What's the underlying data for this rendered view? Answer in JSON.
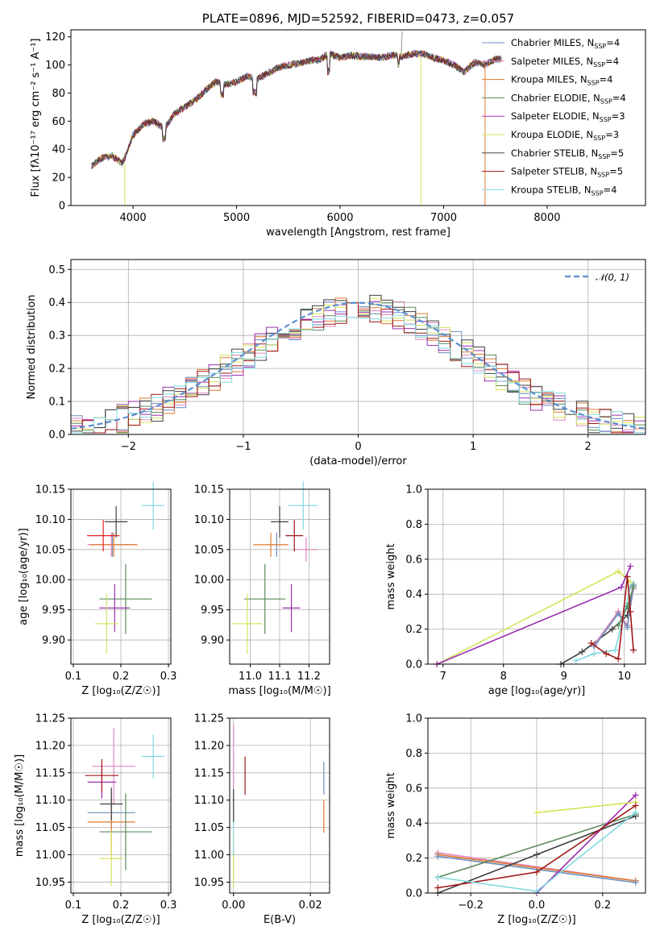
{
  "title": "PLATE=0896, MJD=52592, FIBERID=0473, z=0.057",
  "colors": {
    "Chabrier MILES": "#6c8ebf",
    "Salpeter MILES": "#e088c0",
    "Kroupa MILES": "#e07a30",
    "Chabrier ELODIE": "#5a8a5a",
    "Salpeter ELODIE": "#9b30b0",
    "Kroupa ELODIE": "#d7e35a",
    "Chabrier STELIB": "#404040",
    "Salpeter STELIB": "#a01818",
    "Kroupa STELIB": "#80d8e0",
    "red": "#e02020",
    "gauss": "#5b8fd0"
  },
  "chart_data": [
    {
      "id": "spectrum",
      "type": "line",
      "title": "PLATE=0896, MJD=52592, FIBERID=0473, z=0.057",
      "xlabel": "wavelength [Angstrom, rest frame]",
      "ylabel": "Flux [fλ10⁻¹⁷ erg cm⁻² s⁻¹ A⁻¹]",
      "xlim": [
        3400,
        8950
      ],
      "ylim": [
        0,
        125
      ],
      "xticks": [
        4000,
        5000,
        6000,
        7000,
        8000
      ],
      "yticks": [
        0,
        20,
        40,
        60,
        80,
        100,
        120
      ],
      "legend": [
        "Chabrier MILES, N_SSP=4",
        "Salpeter MILES, N_SSP=4",
        "Kroupa MILES, N_SSP=4",
        "Chabrier ELODIE, N_SSP=4",
        "Salpeter ELODIE, N_SSP=3",
        "Kroupa ELODIE, N_SSP=3",
        "Chabrier STELIB, N_SSP=5",
        "Salpeter STELIB, N_SSP=5",
        "Kroupa STELIB, N_SSP=4"
      ],
      "legend_position": "right",
      "approx_points": [
        [
          3600,
          28
        ],
        [
          3700,
          34
        ],
        [
          3800,
          35
        ],
        [
          3900,
          30
        ],
        [
          4000,
          50
        ],
        [
          4100,
          58
        ],
        [
          4200,
          60
        ],
        [
          4300,
          55
        ],
        [
          4400,
          65
        ],
        [
          4500,
          70
        ],
        [
          4600,
          75
        ],
        [
          4700,
          82
        ],
        [
          4800,
          88
        ],
        [
          4900,
          86
        ],
        [
          5000,
          88
        ],
        [
          5100,
          92
        ],
        [
          5200,
          90
        ],
        [
          5300,
          94
        ],
        [
          5400,
          98
        ],
        [
          5500,
          100
        ],
        [
          5600,
          101
        ],
        [
          5700,
          103
        ],
        [
          5800,
          104
        ],
        [
          5900,
          108
        ],
        [
          6000,
          105
        ],
        [
          6100,
          107
        ],
        [
          6200,
          106
        ],
        [
          6300,
          106
        ],
        [
          6400,
          105
        ],
        [
          6500,
          107
        ],
        [
          6600,
          106
        ],
        [
          6700,
          108
        ],
        [
          6800,
          108
        ],
        [
          6900,
          105
        ],
        [
          7000,
          103
        ],
        [
          7100,
          100
        ],
        [
          7200,
          95
        ],
        [
          7300,
          102
        ],
        [
          7400,
          100
        ],
        [
          7500,
          104
        ]
      ]
    },
    {
      "id": "residuals",
      "type": "histogram",
      "xlabel": "(data-model)/error",
      "ylabel": "Normed distribution",
      "xlim": [
        -2.5,
        2.5
      ],
      "ylim": [
        0,
        0.53
      ],
      "xticks": [
        -2,
        -1,
        0,
        1,
        2
      ],
      "yticks": [
        0.0,
        0.1,
        0.2,
        0.3,
        0.4,
        0.5
      ],
      "legend": [
        "𝒩(0, 1)"
      ],
      "legend_position": "top-right"
    },
    {
      "id": "age_vs_Z",
      "type": "scatter",
      "xlabel": "Z [log₁₀(Z/Z☉)]",
      "ylabel": "age  [log₁₀(age/yr)]",
      "xlim": [
        0.095,
        0.305
      ],
      "ylim": [
        9.86,
        10.15
      ],
      "xticks": [
        0.1,
        0.2,
        0.3
      ],
      "yticks": [
        9.9,
        9.95,
        10.0,
        10.05,
        10.1,
        10.15
      ],
      "points": [
        {
          "series": "Chabrier MILES",
          "x": 0.182,
          "y": 10.058,
          "xerr": 0.05,
          "yerr": 0.02
        },
        {
          "series": "Salpeter MILES",
          "x": 0.18,
          "y": 10.058,
          "xerr": 0.05,
          "yerr": 0.02
        },
        {
          "series": "Kroupa MILES",
          "x": 0.185,
          "y": 10.058,
          "xerr": 0.05,
          "yerr": 0.02
        },
        {
          "series": "Chabrier ELODIE",
          "x": 0.21,
          "y": 9.968,
          "xerr": 0.055,
          "yerr": 0.058
        },
        {
          "series": "Salpeter ELODIE",
          "x": 0.187,
          "y": 9.953,
          "xerr": 0.032,
          "yerr": 0.04
        },
        {
          "series": "Kroupa ELODIE",
          "x": 0.17,
          "y": 9.927,
          "xerr": 0.024,
          "yerr": 0.05
        },
        {
          "series": "Chabrier STELIB",
          "x": 0.19,
          "y": 10.096,
          "xerr": 0.024,
          "yerr": 0.026
        },
        {
          "series": "Salpeter STELIB",
          "x": 0.163,
          "y": 10.073,
          "xerr": 0.034,
          "yerr": 0.026
        },
        {
          "series": "Kroupa STELIB",
          "x": 0.268,
          "y": 10.123,
          "xerr": 0.024,
          "yerr": 0.04
        }
      ]
    },
    {
      "id": "age_vs_mass",
      "type": "scatter",
      "xlabel": "mass [log₁₀(M/M☉)]",
      "ylabel": "",
      "xlim": [
        10.93,
        11.27
      ],
      "ylim": [
        9.86,
        10.15
      ],
      "xticks": [
        11.0,
        11.1,
        11.2
      ],
      "yticks": [
        9.9,
        9.95,
        10.0,
        10.05,
        10.1,
        10.15
      ],
      "points": [
        {
          "series": "Chabrier MILES",
          "x": 11.09,
          "y": 10.058,
          "xerr": 0.03,
          "yerr": 0.02
        },
        {
          "series": "Salpeter MILES",
          "x": 11.19,
          "y": 10.05,
          "xerr": 0.04,
          "yerr": 0.02
        },
        {
          "series": "Kroupa MILES",
          "x": 11.07,
          "y": 10.058,
          "xerr": 0.06,
          "yerr": 0.02
        },
        {
          "series": "Chabrier ELODIE",
          "x": 11.05,
          "y": 9.968,
          "xerr": 0.07,
          "yerr": 0.058
        },
        {
          "series": "Salpeter ELODIE",
          "x": 11.14,
          "y": 9.953,
          "xerr": 0.03,
          "yerr": 0.04
        },
        {
          "series": "Kroupa ELODIE",
          "x": 10.99,
          "y": 9.927,
          "xerr": 0.05,
          "yerr": 0.05
        },
        {
          "series": "Chabrier STELIB",
          "x": 11.1,
          "y": 10.096,
          "xerr": 0.03,
          "yerr": 0.026
        },
        {
          "series": "Salpeter STELIB",
          "x": 11.15,
          "y": 10.073,
          "xerr": 0.03,
          "yerr": 0.026
        },
        {
          "series": "Kroupa STELIB",
          "x": 11.18,
          "y": 10.123,
          "xerr": 0.05,
          "yerr": 0.04
        }
      ]
    },
    {
      "id": "weight_vs_age",
      "type": "line",
      "xlabel": "age  [log₁₀(age/yr)]",
      "ylabel": "mass weight",
      "xlim": [
        6.75,
        10.35
      ],
      "ylim": [
        0,
        1.0
      ],
      "xticks": [
        7,
        8,
        9,
        10
      ],
      "yticks": [
        0.0,
        0.2,
        0.4,
        0.6,
        0.8,
        1.0
      ],
      "series": [
        {
          "name": "Kroupa ELODIE",
          "x": [
            6.9,
            9.9,
            10.1
          ],
          "y": [
            0.0,
            0.53,
            0.47
          ]
        },
        {
          "name": "Salpeter ELODIE",
          "x": [
            6.9,
            9.95,
            10.1
          ],
          "y": [
            0.0,
            0.44,
            0.56
          ]
        },
        {
          "name": "Chabrier STELIB",
          "x": [
            8.95,
            9.3,
            9.8,
            10.05,
            10.15
          ],
          "y": [
            0.0,
            0.07,
            0.2,
            0.28,
            0.45
          ]
        },
        {
          "name": "Kroupa STELIB",
          "x": [
            9.2,
            9.5,
            9.85,
            10.1,
            10.15
          ],
          "y": [
            0.02,
            0.06,
            0.08,
            0.44,
            0.46
          ]
        },
        {
          "name": "Kroupa MILES",
          "x": [
            9.5,
            9.9,
            10.05,
            10.15
          ],
          "y": [
            0.11,
            0.3,
            0.22,
            0.45
          ]
        },
        {
          "name": "Salpeter MILES",
          "x": [
            9.5,
            9.9,
            10.05,
            10.15
          ],
          "y": [
            0.11,
            0.3,
            0.22,
            0.43
          ]
        },
        {
          "name": "Chabrier MILES",
          "x": [
            9.5,
            9.9,
            10.05,
            10.15
          ],
          "y": [
            0.1,
            0.29,
            0.21,
            0.45
          ]
        },
        {
          "name": "Chabrier ELODIE",
          "x": [
            9.9,
            10.05,
            10.15
          ],
          "y": [
            0.22,
            0.33,
            0.44
          ]
        },
        {
          "name": "Salpeter STELIB",
          "x": [
            9.45,
            9.7,
            9.9,
            10.05,
            10.1,
            10.15
          ],
          "y": [
            0.12,
            0.06,
            0.03,
            0.5,
            0.3,
            0.08
          ]
        }
      ]
    },
    {
      "id": "mass_vs_Z",
      "type": "scatter",
      "xlabel": "Z [log₁₀(Z/Z☉)]",
      "ylabel": "mass [log₁₀(M/M☉)]",
      "xlim": [
        0.095,
        0.305
      ],
      "ylim": [
        10.93,
        11.25
      ],
      "xticks": [
        0.1,
        0.2,
        0.3
      ],
      "yticks": [
        10.95,
        11.0,
        11.05,
        11.1,
        11.15,
        11.2,
        11.25
      ],
      "points": [
        {
          "series": "Chabrier MILES",
          "x": 0.18,
          "y": 11.077,
          "xerr": 0.05,
          "yerr": 0.03
        },
        {
          "series": "Salpeter MILES",
          "x": 0.185,
          "y": 11.162,
          "xerr": 0.045,
          "yerr": 0.07
        },
        {
          "series": "Kroupa MILES",
          "x": 0.18,
          "y": 11.06,
          "xerr": 0.05,
          "yerr": 0.06
        },
        {
          "series": "Chabrier ELODIE",
          "x": 0.21,
          "y": 11.042,
          "xerr": 0.055,
          "yerr": 0.07
        },
        {
          "series": "Salpeter ELODIE",
          "x": 0.16,
          "y": 11.133,
          "xerr": 0.03,
          "yerr": 0.03
        },
        {
          "series": "Kroupa ELODIE",
          "x": 0.18,
          "y": 10.993,
          "xerr": 0.024,
          "yerr": 0.05
        },
        {
          "series": "Chabrier STELIB",
          "x": 0.18,
          "y": 11.093,
          "xerr": 0.024,
          "yerr": 0.03
        },
        {
          "series": "Salpeter STELIB",
          "x": 0.16,
          "y": 11.145,
          "xerr": 0.035,
          "yerr": 0.03
        },
        {
          "series": "Kroupa STELIB",
          "x": 0.268,
          "y": 11.18,
          "xerr": 0.024,
          "yerr": 0.04
        }
      ]
    },
    {
      "id": "mass_vs_ebv",
      "type": "scatter",
      "xlabel": "E(B-V)",
      "ylabel": "",
      "xlim": [
        -0.001,
        0.025
      ],
      "ylim": [
        10.93,
        11.25
      ],
      "xticks": [
        0.0,
        0.02
      ],
      "yticks": [
        10.95,
        11.0,
        11.05,
        11.1,
        11.15,
        11.2,
        11.25
      ],
      "points": [
        {
          "series": "Salpeter MILES",
          "x": 0.0,
          "y": 11.15,
          "yerr": 0.09
        },
        {
          "series": "Kroupa ELODIE",
          "x": 0.0,
          "y": 10.99,
          "yerr": 0.05
        },
        {
          "series": "Kroupa STELIB",
          "x": 0.0,
          "y": 11.06,
          "yerr": 0.06
        },
        {
          "series": "Chabrier STELIB",
          "x": 0.0,
          "y": 11.09,
          "yerr": 0.03
        },
        {
          "series": "Salpeter STELIB",
          "x": 0.003,
          "y": 11.145,
          "yerr": 0.035
        },
        {
          "series": "Chabrier MILES",
          "x": 0.0235,
          "y": 11.14,
          "yerr": 0.03
        },
        {
          "series": "Kroupa MILES",
          "x": 0.0235,
          "y": 11.07,
          "yerr": 0.03
        }
      ]
    },
    {
      "id": "weight_vs_Z",
      "type": "line",
      "xlabel": "Z [log₁₀(Z/Z☉)]",
      "ylabel": "mass weight",
      "xlim": [
        -0.33,
        0.33
      ],
      "ylim": [
        0,
        1.0
      ],
      "xticks": [
        -0.2,
        0.0,
        0.2
      ],
      "yticks": [
        0.0,
        0.2,
        0.4,
        0.6,
        0.8,
        1.0
      ],
      "series": [
        {
          "name": "Salpeter MILES",
          "x": [
            -0.3,
            0.3
          ],
          "y": [
            0.23,
            0.07
          ]
        },
        {
          "name": "Kroupa MILES",
          "x": [
            -0.3,
            0.3
          ],
          "y": [
            0.22,
            0.07
          ]
        },
        {
          "name": "Chabrier MILES",
          "x": [
            -0.3,
            0.3
          ],
          "y": [
            0.21,
            0.06
          ]
        },
        {
          "name": "Chabrier ELODIE",
          "x": [
            -0.3,
            0.3
          ],
          "y": [
            0.09,
            0.45
          ]
        },
        {
          "name": "Salpeter ELODIE",
          "x": [
            0.0,
            0.3
          ],
          "y": [
            0.0,
            0.56
          ]
        },
        {
          "name": "Kroupa ELODIE",
          "x": [
            0.0,
            0.3
          ],
          "y": [
            0.46,
            0.52
          ]
        },
        {
          "name": "Chabrier STELIB",
          "x": [
            -0.3,
            0.0,
            0.3
          ],
          "y": [
            0.0,
            0.22,
            0.44
          ]
        },
        {
          "name": "Salpeter STELIB",
          "x": [
            -0.3,
            0.0,
            0.3
          ],
          "y": [
            0.03,
            0.12,
            0.5
          ]
        },
        {
          "name": "Kroupa STELIB",
          "x": [
            -0.3,
            0.0,
            0.3
          ],
          "y": [
            0.09,
            0.01,
            0.46
          ]
        }
      ]
    }
  ]
}
